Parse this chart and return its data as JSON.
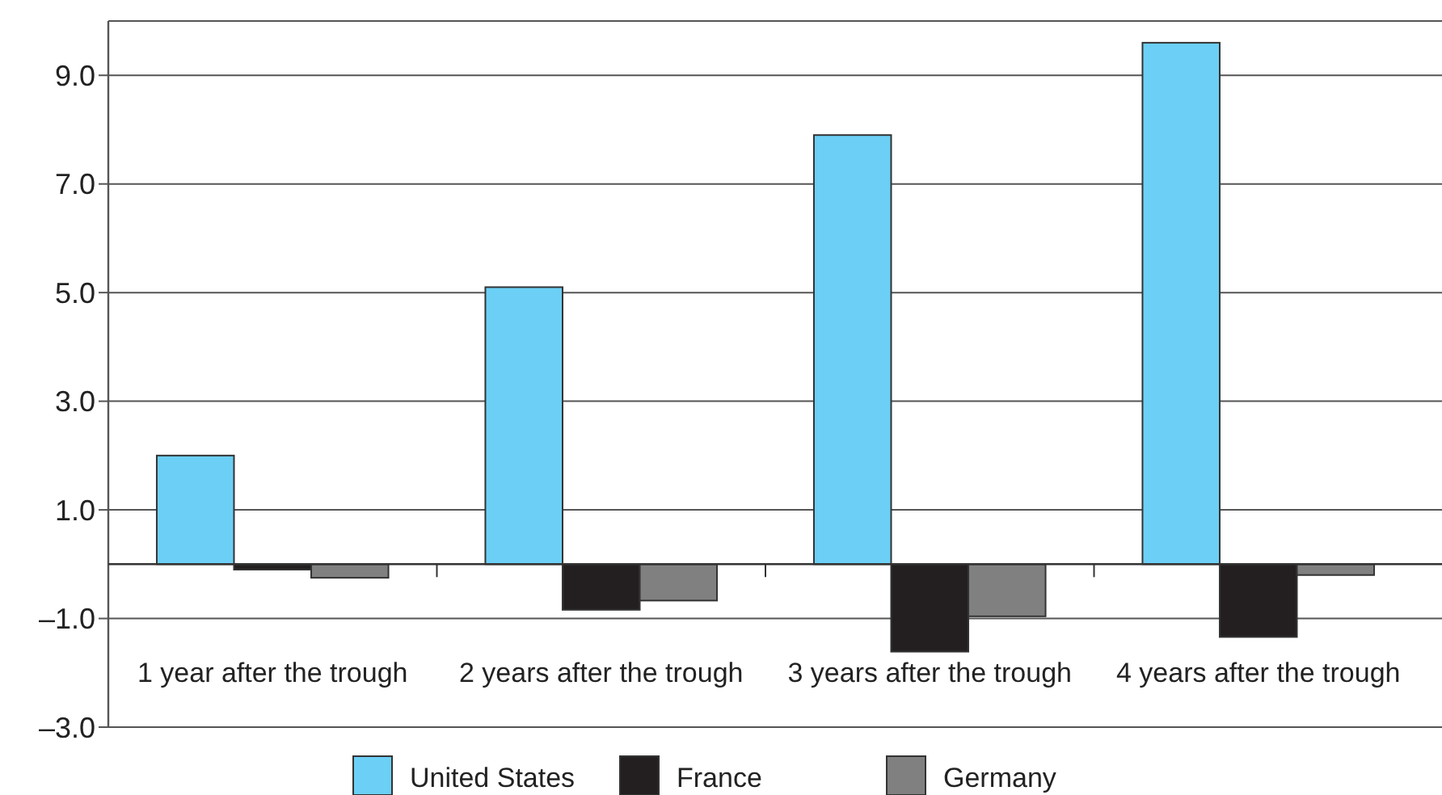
{
  "chart_data": {
    "type": "bar",
    "categories": [
      "1 year after the trough",
      "2 years after the trough",
      "3 years after the trough",
      "4 years after the trough"
    ],
    "series": [
      {
        "name": "United States",
        "color": "#6ccff5",
        "values": [
          2.0,
          5.1,
          7.9,
          9.6
        ]
      },
      {
        "name": "France",
        "color": "#231f20",
        "values": [
          -0.1,
          -0.84,
          -1.61,
          -1.34
        ]
      },
      {
        "name": "Germany",
        "color": "#808080",
        "values": [
          -0.25,
          -0.67,
          -0.96,
          -0.2
        ]
      }
    ],
    "ylim": [
      -3,
      10
    ],
    "yticks": [
      {
        "value": -3,
        "label": "–3.0"
      },
      {
        "value": -1,
        "label": "–1.0"
      },
      {
        "value": 1,
        "label": "1.0"
      },
      {
        "value": 3,
        "label": "3.0"
      },
      {
        "value": 5,
        "label": "5.0"
      },
      {
        "value": 7,
        "label": "7.0"
      },
      {
        "value": 9,
        "label": "9.0"
      }
    ],
    "grid": "y",
    "legend": "bottom"
  }
}
